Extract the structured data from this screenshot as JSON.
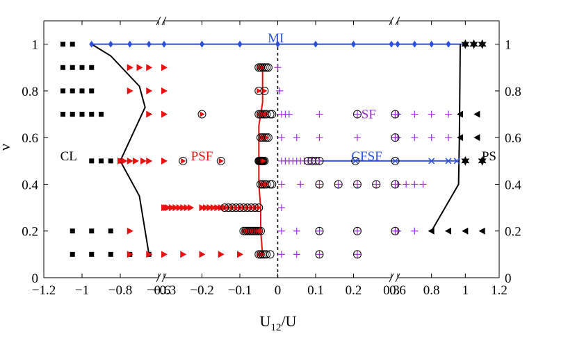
{
  "chart_data": {
    "type": "scatter",
    "title": "",
    "xlabel": "U",
    "xlabel_sub": "12",
    "xlabel_suffix": "/U",
    "ylabel": "ν",
    "ylim": [
      0,
      1.1
    ],
    "grid": false,
    "x_axis_segments": [
      {
        "name": "left",
        "range": [
          -1.2,
          -0.6
        ],
        "ticks": [
          -1.2,
          -1,
          -0.8,
          -0.6
        ],
        "tick_labels": [
          "−1.2",
          "−1",
          "−0.8",
          "−0.6"
        ]
      },
      {
        "name": "middle",
        "range": [
          -0.3,
          0.3
        ],
        "ticks": [
          -0.3,
          -0.2,
          -0.1,
          0,
          0.1,
          0.2,
          0.3
        ],
        "tick_labels": [
          "−0.3",
          "−0.2",
          "−0.1",
          "0",
          "0.1",
          "0.2",
          "0.3"
        ]
      },
      {
        "name": "right",
        "range": [
          0.6,
          1.2
        ],
        "ticks": [
          0.6,
          0.8,
          1,
          1.2
        ],
        "tick_labels": [
          "0.6",
          "0.8",
          "1",
          "1.2"
        ]
      }
    ],
    "y_ticks": [
      0,
      0.2,
      0.4,
      0.6,
      0.8,
      1
    ],
    "y_tick_labels": [
      "0",
      "0.2",
      "0.4",
      "0.6",
      "0.8",
      "1"
    ],
    "region_labels": [
      {
        "text": "MI",
        "x": -0.005,
        "y": 1.025,
        "color": "#2b50d8"
      },
      {
        "text": "SF",
        "x": 0.24,
        "y": 0.7,
        "color": "#9b30d0"
      },
      {
        "text": "CL",
        "x": -1.07,
        "y": 0.52,
        "color": "#000000"
      },
      {
        "text": "PSF",
        "x": -0.2,
        "y": 0.52,
        "color": "#e81010"
      },
      {
        "text": "CFSF",
        "x": 0.235,
        "y": 0.52,
        "color": "#2b50d8"
      },
      {
        "text": "PS",
        "x": 1.14,
        "y": 0.52,
        "color": "#000000"
      }
    ],
    "series": [
      {
        "name": "CL",
        "marker": "square",
        "color": "#000000",
        "points": [
          [
            -1.1,
            1
          ],
          [
            -1.05,
            1
          ],
          [
            -1.1,
            0.9
          ],
          [
            -1.05,
            0.9
          ],
          [
            -1,
            0.9
          ],
          [
            -0.95,
            0.9
          ],
          [
            -1.1,
            0.8
          ],
          [
            -1.05,
            0.8
          ],
          [
            -1,
            0.8
          ],
          [
            -0.95,
            0.8
          ],
          [
            -1.1,
            0.7
          ],
          [
            -1.05,
            0.7
          ],
          [
            -1,
            0.7
          ],
          [
            -0.95,
            0.7
          ],
          [
            -0.9,
            0.7
          ],
          [
            -0.95,
            0.5
          ],
          [
            -0.9,
            0.5
          ],
          [
            -0.85,
            0.5
          ],
          [
            -0.8,
            0.5
          ],
          [
            -1.05,
            0.2
          ],
          [
            -0.95,
            0.2
          ],
          [
            -0.85,
            0.2
          ],
          [
            -1.05,
            0.1
          ],
          [
            -0.95,
            0.1
          ],
          [
            -0.85,
            0.1
          ],
          [
            -0.75,
            0.1
          ],
          [
            -0.65,
            0.1
          ]
        ]
      },
      {
        "name": "PSF-left",
        "marker": "triangle-right",
        "color": "#e81010",
        "points": [
          [
            -0.75,
            0.9
          ],
          [
            -0.7,
            0.9
          ],
          [
            -0.65,
            0.9
          ],
          [
            -0.75,
            0.8
          ],
          [
            -0.65,
            0.8
          ],
          [
            -0.65,
            0.7
          ],
          [
            -0.8,
            0.5
          ],
          [
            -0.78,
            0.5
          ],
          [
            -0.75,
            0.5
          ],
          [
            -0.72,
            0.5
          ],
          [
            -0.68,
            0.5
          ],
          [
            -0.65,
            0.5
          ],
          [
            -0.75,
            0.2
          ],
          [
            -0.75,
            0.1
          ],
          [
            -0.65,
            0.1
          ]
        ]
      },
      {
        "name": "PSF-middle",
        "marker": "triangle-right",
        "color": "#e81010",
        "points": [
          [
            -0.3,
            0.9
          ],
          [
            -0.3,
            0.8
          ],
          [
            -0.3,
            0.7
          ],
          [
            -0.3,
            0.5
          ],
          [
            -0.3,
            0.3
          ],
          [
            -0.295,
            0.3
          ],
          [
            -0.29,
            0.3
          ],
          [
            -0.28,
            0.3
          ],
          [
            -0.27,
            0.3
          ],
          [
            -0.26,
            0.3
          ],
          [
            -0.25,
            0.3
          ],
          [
            -0.24,
            0.3
          ],
          [
            -0.23,
            0.3
          ],
          [
            -0.2,
            0.3
          ],
          [
            -0.19,
            0.3
          ],
          [
            -0.18,
            0.3
          ],
          [
            -0.17,
            0.3
          ],
          [
            -0.16,
            0.3
          ],
          [
            -0.15,
            0.3
          ],
          [
            -0.14,
            0.3
          ],
          [
            -0.3,
            0.1
          ],
          [
            -0.25,
            0.1
          ],
          [
            -0.2,
            0.1
          ],
          [
            -0.15,
            0.1
          ],
          [
            -0.1,
            0.1
          ]
        ]
      },
      {
        "name": "PSF-circled",
        "marker": "triangle-circle",
        "color": "#e81010",
        "points": [
          [
            -0.05,
            0.9
          ],
          [
            -0.045,
            0.9
          ],
          [
            -0.04,
            0.9
          ],
          [
            -0.05,
            0.8
          ],
          [
            -0.035,
            0.8
          ],
          [
            -0.2,
            0.7
          ],
          [
            -0.05,
            0.7
          ],
          [
            -0.045,
            0.7
          ],
          [
            -0.04,
            0.7
          ],
          [
            -0.035,
            0.7
          ],
          [
            -0.03,
            0.7
          ],
          [
            -0.045,
            0.6
          ],
          [
            -0.04,
            0.6
          ],
          [
            -0.035,
            0.6
          ],
          [
            -0.03,
            0.6
          ],
          [
            -0.25,
            0.5
          ],
          [
            -0.15,
            0.5
          ],
          [
            -0.05,
            0.5
          ],
          [
            -0.048,
            0.5
          ],
          [
            -0.046,
            0.5
          ],
          [
            -0.044,
            0.5
          ],
          [
            -0.042,
            0.5
          ],
          [
            -0.04,
            0.5
          ],
          [
            -0.038,
            0.5
          ],
          [
            -0.045,
            0.4
          ],
          [
            -0.04,
            0.4
          ],
          [
            -0.035,
            0.4
          ],
          [
            -0.03,
            0.4
          ],
          [
            -0.14,
            0.3
          ],
          [
            -0.13,
            0.3
          ],
          [
            -0.12,
            0.3
          ],
          [
            -0.11,
            0.3
          ],
          [
            -0.1,
            0.3
          ],
          [
            -0.09,
            0.3
          ],
          [
            -0.08,
            0.3
          ],
          [
            -0.07,
            0.3
          ],
          [
            -0.06,
            0.3
          ],
          [
            -0.05,
            0.3
          ],
          [
            -0.09,
            0.2
          ],
          [
            -0.085,
            0.2
          ],
          [
            -0.08,
            0.2
          ],
          [
            -0.075,
            0.2
          ],
          [
            -0.07,
            0.2
          ],
          [
            -0.065,
            0.2
          ],
          [
            -0.06,
            0.2
          ],
          [
            -0.055,
            0.2
          ],
          [
            -0.05,
            0.2
          ],
          [
            -0.045,
            0.2
          ],
          [
            -0.05,
            0.1
          ],
          [
            -0.045,
            0.1
          ],
          [
            -0.04,
            0.1
          ]
        ]
      },
      {
        "name": "empty-circle",
        "marker": "circle",
        "color": "#000000",
        "points": [
          [
            -0.035,
            0.9
          ],
          [
            -0.03,
            0.9
          ],
          [
            -0.025,
            0.9
          ],
          [
            -0.02,
            0.7
          ],
          [
            -0.015,
            0.7
          ],
          [
            -0.025,
            0.6
          ],
          [
            -0.035,
            0.5
          ],
          [
            -0.02,
            0.4
          ],
          [
            -0.015,
            0.4
          ],
          [
            -0.035,
            0.1
          ],
          [
            -0.03,
            0.1
          ],
          [
            -0.02,
            0.1
          ]
        ]
      },
      {
        "name": "SF",
        "marker": "plus",
        "color": "#9b30d0",
        "points": [
          [
            0,
            0.9
          ],
          [
            0.005,
            0.8
          ],
          [
            0.01,
            0.7
          ],
          [
            0.02,
            0.7
          ],
          [
            0.03,
            0.7
          ],
          [
            0.11,
            0.7
          ],
          [
            0.31,
            0.7
          ],
          [
            0.01,
            0.6
          ],
          [
            0.05,
            0.6
          ],
          [
            0.11,
            0.6
          ],
          [
            0.21,
            0.6
          ],
          [
            0.31,
            0.6
          ],
          [
            0.01,
            0.5
          ],
          [
            0.02,
            0.5
          ],
          [
            0.03,
            0.5
          ],
          [
            0.04,
            0.5
          ],
          [
            0.05,
            0.5
          ],
          [
            0.06,
            0.5
          ],
          [
            0.07,
            0.5
          ],
          [
            0.01,
            0.4
          ],
          [
            0.06,
            0.4
          ],
          [
            0.01,
            0.3
          ],
          [
            0.01,
            0.2
          ],
          [
            0.05,
            0.2
          ],
          [
            0.01,
            0.1
          ],
          [
            0.05,
            0.1
          ]
        ]
      },
      {
        "name": "SF-right",
        "marker": "plus",
        "color": "#9b30d0",
        "points": [
          [
            0.6,
            0.7
          ],
          [
            0.7,
            0.7
          ],
          [
            0.8,
            0.7
          ],
          [
            0.9,
            0.7
          ],
          [
            0.6,
            0.6
          ],
          [
            0.7,
            0.6
          ],
          [
            0.8,
            0.6
          ],
          [
            0.9,
            0.6
          ],
          [
            0.6,
            0.4
          ],
          [
            0.65,
            0.4
          ],
          [
            0.7,
            0.4
          ],
          [
            0.75,
            0.4
          ],
          [
            0.6,
            0.2
          ],
          [
            0.7,
            0.2
          ]
        ]
      },
      {
        "name": "SF-circled",
        "marker": "plus-circle",
        "color": "#000000",
        "points": [
          [
            0.21,
            0.7
          ],
          [
            0.31,
            0.7
          ],
          [
            0.31,
            0.6
          ],
          [
            0.08,
            0.5
          ],
          [
            0.09,
            0.5
          ],
          [
            0.1,
            0.5
          ],
          [
            0.11,
            0.5
          ],
          [
            0.11,
            0.4
          ],
          [
            0.16,
            0.4
          ],
          [
            0.21,
            0.4
          ],
          [
            0.26,
            0.4
          ],
          [
            0.31,
            0.4
          ],
          [
            0.11,
            0.2
          ],
          [
            0.21,
            0.2
          ],
          [
            0.31,
            0.2
          ],
          [
            0.11,
            0.1
          ],
          [
            0.21,
            0.1
          ]
        ]
      },
      {
        "name": "CFSF-circled",
        "marker": "x-circle",
        "color": "#2b50d8",
        "points": [
          [
            0.205,
            0.5
          ],
          [
            0.31,
            0.5
          ]
        ]
      },
      {
        "name": "CFSF",
        "marker": "x",
        "color": "#2b50d8",
        "points": [
          [
            0.8,
            0.5
          ],
          [
            0.9,
            0.5
          ],
          [
            0.95,
            0.5
          ]
        ]
      },
      {
        "name": "MI",
        "marker": "diamond",
        "color": "#2b50d8",
        "points": [
          [
            -0.95,
            1
          ],
          [
            -0.85,
            1
          ],
          [
            -0.75,
            1
          ],
          [
            -0.65,
            1
          ],
          [
            -0.3,
            1
          ],
          [
            -0.2,
            1
          ],
          [
            -0.1,
            1
          ],
          [
            0,
            1
          ],
          [
            0.1,
            1
          ],
          [
            0.2,
            1
          ],
          [
            0.3,
            1
          ],
          [
            0.6,
            1
          ],
          [
            0.7,
            1
          ],
          [
            0.8,
            1
          ],
          [
            0.9,
            1
          ],
          [
            1.0,
            1
          ]
        ]
      },
      {
        "name": "PS-stars",
        "marker": "star",
        "color": "#000000",
        "points": [
          [
            1,
            1
          ],
          [
            1.05,
            1
          ],
          [
            1.1,
            1
          ],
          [
            1,
            0.5
          ],
          [
            1.1,
            0.5
          ]
        ]
      },
      {
        "name": "PS-triangles",
        "marker": "triangle-left",
        "color": "#000000",
        "points": [
          [
            0.97,
            0.7
          ],
          [
            1.07,
            0.7
          ],
          [
            0.97,
            0.6
          ],
          [
            1.07,
            0.6
          ],
          [
            0.8,
            0.2
          ],
          [
            0.9,
            0.2
          ],
          [
            1,
            0.2
          ],
          [
            1.1,
            0.2
          ]
        ]
      }
    ],
    "lines": [
      {
        "name": "MI-line",
        "color": "#2b50d8",
        "dash": false,
        "points": [
          [
            -0.95,
            1
          ],
          [
            -0.6,
            1
          ],
          [
            -0.3,
            1
          ],
          [
            0.3,
            1
          ],
          [
            0.6,
            1
          ],
          [
            1.0,
            1
          ]
        ]
      },
      {
        "name": "CFSF-line",
        "color": "#2b50d8",
        "dash": false,
        "points": [
          [
            0.11,
            0.5
          ],
          [
            0.3,
            0.5
          ],
          [
            0.6,
            0.5
          ],
          [
            0.95,
            0.5
          ]
        ]
      },
      {
        "name": "CL-boundary",
        "color": "#000000",
        "dash": false,
        "points": [
          [
            -0.95,
            1
          ],
          [
            -0.85,
            0.95
          ],
          [
            -0.7,
            0.82
          ],
          [
            -0.67,
            0.73
          ],
          [
            -0.8,
            0.5
          ],
          [
            -0.7,
            0.35
          ],
          [
            -0.65,
            0.1
          ]
        ]
      },
      {
        "name": "PSF-boundary",
        "color": "#e81010",
        "dash": false,
        "points": [
          [
            -0.04,
            0.9
          ],
          [
            -0.04,
            0.75
          ],
          [
            -0.05,
            0.65
          ],
          [
            -0.05,
            0.5
          ],
          [
            -0.05,
            0.4
          ],
          [
            -0.045,
            0.3
          ],
          [
            -0.045,
            0.2
          ],
          [
            -0.04,
            0.1
          ]
        ]
      },
      {
        "name": "PS-boundary",
        "color": "#000000",
        "dash": false,
        "points": [
          [
            0.97,
            1
          ],
          [
            0.965,
            0.6
          ],
          [
            0.96,
            0.4
          ],
          [
            0.8,
            0.2
          ]
        ]
      },
      {
        "name": "zero-line",
        "color": "#000000",
        "dash": true,
        "points": [
          [
            0,
            0
          ],
          [
            0,
            1
          ]
        ]
      }
    ]
  }
}
